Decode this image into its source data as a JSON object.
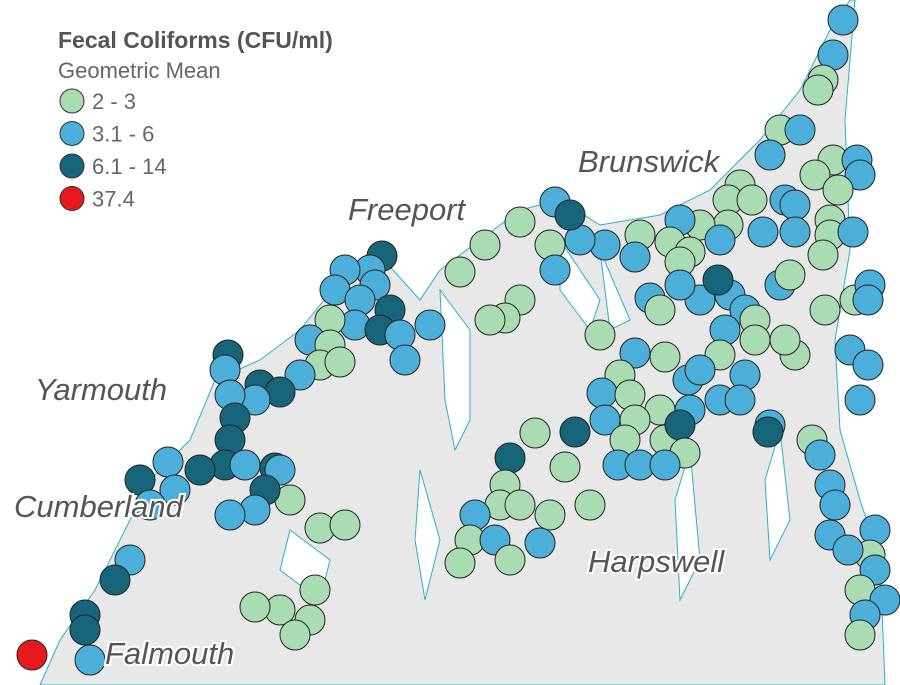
{
  "legend": {
    "title": "Fecal Coliforms (CFU/ml)",
    "subtitle": "Geometric Mean",
    "items": [
      {
        "label": "2 - 3",
        "color": "#a9dcb3"
      },
      {
        "label": "3.1 - 6",
        "color": "#4bafd9"
      },
      {
        "label": "6.1 - 14",
        "color": "#17657a"
      },
      {
        "label": "37.4",
        "color": "#e8191c"
      }
    ]
  },
  "places": [
    "Brunswick",
    "Freeport",
    "Yarmouth",
    "Cumberland",
    "Harpswell",
    "Falmouth"
  ]
}
